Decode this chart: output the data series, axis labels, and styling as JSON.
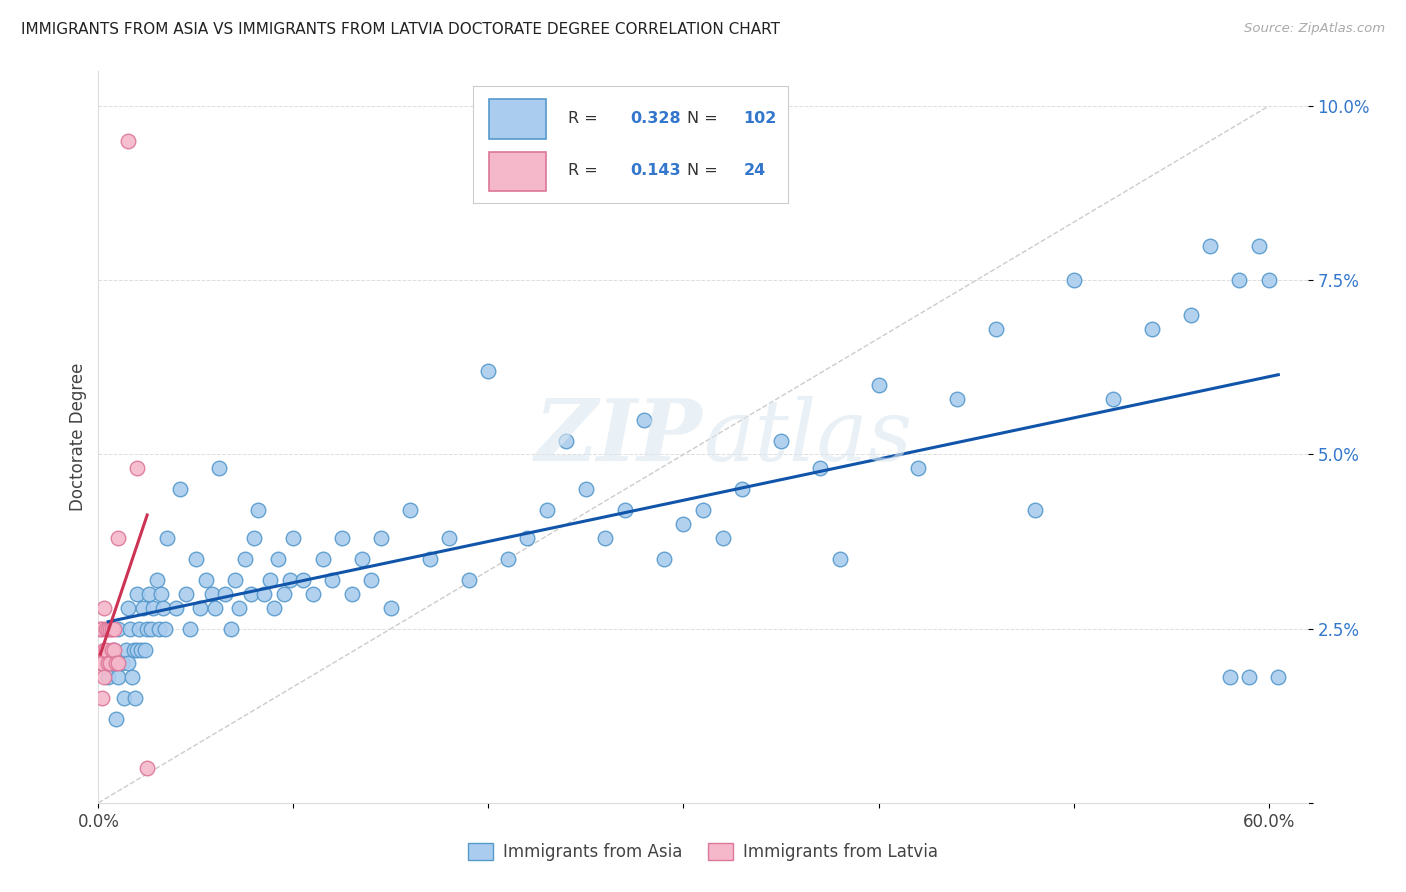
{
  "title": "IMMIGRANTS FROM ASIA VS IMMIGRANTS FROM LATVIA DOCTORATE DEGREE CORRELATION CHART",
  "source": "Source: ZipAtlas.com",
  "ylabel": "Doctorate Degree",
  "xlim": [
    0.0,
    0.62
  ],
  "ylim": [
    0.0,
    0.105
  ],
  "xticks": [
    0.0,
    0.6
  ],
  "yticks": [
    0.0,
    0.025,
    0.05,
    0.075,
    0.1
  ],
  "yticklabels": [
    "",
    "2.5%",
    "5.0%",
    "7.5%",
    "10.0%"
  ],
  "asia_color": "#aaccee",
  "asia_edge_color": "#5599cc",
  "latvia_color": "#f5b8ca",
  "latvia_edge_color": "#dd7799",
  "regression_asia_color": "#1155aa",
  "regression_latvia_color": "#cc3355",
  "R_asia": 0.328,
  "N_asia": 102,
  "R_latvia": 0.143,
  "N_latvia": 24,
  "legend_asia": "Immigrants from Asia",
  "legend_latvia": "Immigrants from Latvia",
  "watermark": "ZIPatlas",
  "asia_x": [
    0.005,
    0.008,
    0.009,
    0.01,
    0.01,
    0.012,
    0.013,
    0.014,
    0.015,
    0.015,
    0.016,
    0.017,
    0.018,
    0.019,
    0.02,
    0.02,
    0.021,
    0.022,
    0.023,
    0.024,
    0.025,
    0.026,
    0.027,
    0.028,
    0.03,
    0.031,
    0.032,
    0.033,
    0.034,
    0.035,
    0.04,
    0.042,
    0.045,
    0.047,
    0.05,
    0.052,
    0.055,
    0.058,
    0.06,
    0.062,
    0.065,
    0.068,
    0.07,
    0.072,
    0.075,
    0.078,
    0.08,
    0.082,
    0.085,
    0.088,
    0.09,
    0.092,
    0.095,
    0.098,
    0.1,
    0.105,
    0.11,
    0.115,
    0.12,
    0.125,
    0.13,
    0.135,
    0.14,
    0.145,
    0.15,
    0.16,
    0.17,
    0.18,
    0.19,
    0.2,
    0.21,
    0.22,
    0.23,
    0.24,
    0.25,
    0.26,
    0.27,
    0.28,
    0.29,
    0.3,
    0.31,
    0.32,
    0.33,
    0.35,
    0.37,
    0.38,
    0.4,
    0.42,
    0.44,
    0.46,
    0.48,
    0.5,
    0.52,
    0.54,
    0.56,
    0.57,
    0.58,
    0.585,
    0.59,
    0.595,
    0.6,
    0.605
  ],
  "asia_y": [
    0.018,
    0.022,
    0.012,
    0.025,
    0.018,
    0.02,
    0.015,
    0.022,
    0.028,
    0.02,
    0.025,
    0.018,
    0.022,
    0.015,
    0.03,
    0.022,
    0.025,
    0.022,
    0.028,
    0.022,
    0.025,
    0.03,
    0.025,
    0.028,
    0.032,
    0.025,
    0.03,
    0.028,
    0.025,
    0.038,
    0.028,
    0.045,
    0.03,
    0.025,
    0.035,
    0.028,
    0.032,
    0.03,
    0.028,
    0.048,
    0.03,
    0.025,
    0.032,
    0.028,
    0.035,
    0.03,
    0.038,
    0.042,
    0.03,
    0.032,
    0.028,
    0.035,
    0.03,
    0.032,
    0.038,
    0.032,
    0.03,
    0.035,
    0.032,
    0.038,
    0.03,
    0.035,
    0.032,
    0.038,
    0.028,
    0.042,
    0.035,
    0.038,
    0.032,
    0.062,
    0.035,
    0.038,
    0.042,
    0.052,
    0.045,
    0.038,
    0.042,
    0.055,
    0.035,
    0.04,
    0.042,
    0.038,
    0.045,
    0.052,
    0.048,
    0.035,
    0.06,
    0.048,
    0.058,
    0.068,
    0.042,
    0.075,
    0.058,
    0.068,
    0.07,
    0.08,
    0.018,
    0.075,
    0.018,
    0.08,
    0.075,
    0.018
  ],
  "latvia_x": [
    0.001,
    0.001,
    0.002,
    0.002,
    0.002,
    0.003,
    0.003,
    0.003,
    0.004,
    0.004,
    0.005,
    0.005,
    0.006,
    0.006,
    0.007,
    0.007,
    0.008,
    0.008,
    0.009,
    0.01,
    0.01,
    0.015,
    0.02,
    0.025
  ],
  "latvia_y": [
    0.025,
    0.02,
    0.025,
    0.02,
    0.015,
    0.028,
    0.022,
    0.018,
    0.025,
    0.022,
    0.02,
    0.025,
    0.025,
    0.02,
    0.022,
    0.025,
    0.025,
    0.022,
    0.02,
    0.02,
    0.038,
    0.095,
    0.048,
    0.005
  ]
}
